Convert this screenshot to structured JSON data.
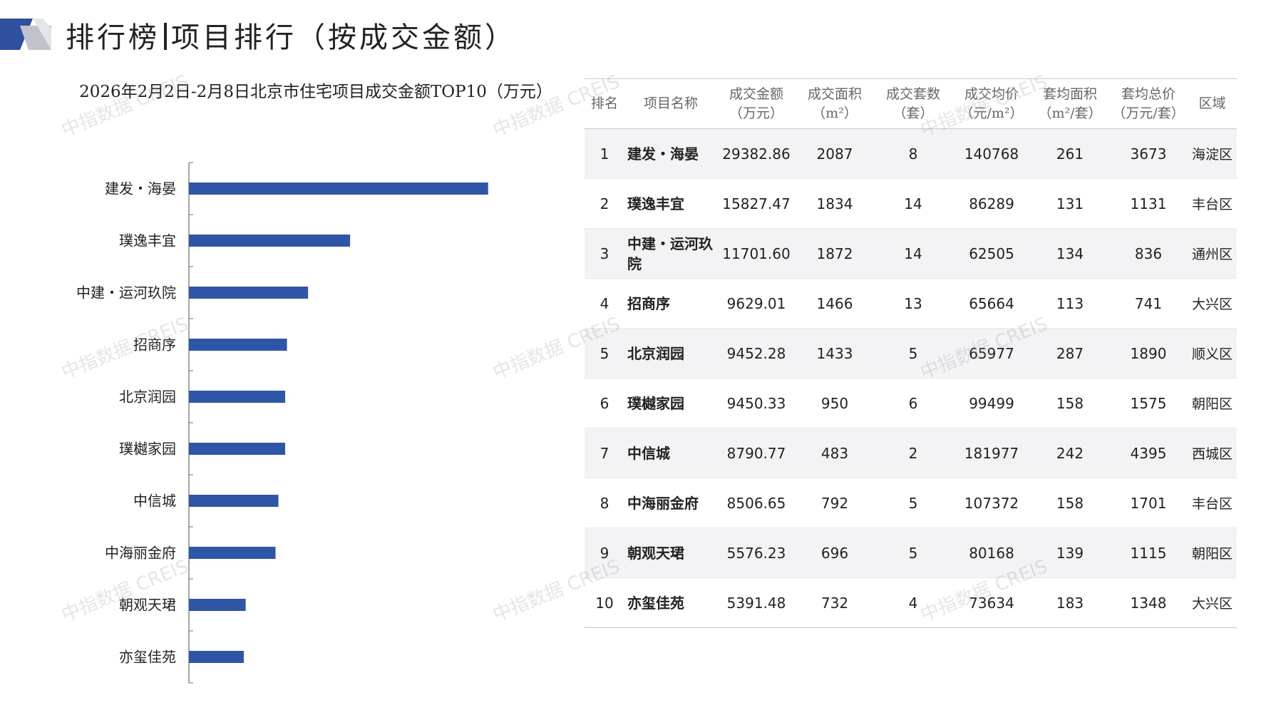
{
  "header": {
    "title_left": "排行榜",
    "title_right": "项目排行（按成交金额）"
  },
  "colors": {
    "bar": "#2f56a6",
    "logo_dark": "#2f4f9f",
    "logo_gray": "#bfc3cc"
  },
  "chart_data": {
    "type": "bar",
    "orientation": "horizontal",
    "title": "2026年2月2日-2月8日北京市住宅项目成交金额TOP10（万元）",
    "categories": [
      "建发・海晏",
      "璞逸丰宜",
      "中建・运河玖院",
      "招商序",
      "北京润园",
      "璞樾家园",
      "中信城",
      "中海丽金府",
      "朝观天珺",
      "亦玺佳苑"
    ],
    "values": [
      29382.86,
      15827.47,
      11701.6,
      9629.01,
      9452.28,
      9450.33,
      8790.77,
      8506.65,
      5576.23,
      5391.48
    ],
    "xlim": [
      0,
      35000
    ]
  },
  "table": {
    "headers": [
      [
        "排名"
      ],
      [
        "项目名称"
      ],
      [
        "成交金额",
        "（万元）"
      ],
      [
        "成交面积",
        "（m²）"
      ],
      [
        "成交套数",
        "（套）"
      ],
      [
        "成交均价",
        "（元/m²）"
      ],
      [
        "套均面积",
        "（m²/套）"
      ],
      [
        "套均总价",
        "（万元/套）"
      ],
      [
        "区域"
      ]
    ],
    "rows": [
      {
        "rank": "1",
        "name": "建发・海晏",
        "amount": "29382.86",
        "area": "2087",
        "units": "8",
        "price": "140768",
        "avg_area": "261",
        "avg_total": "3673",
        "region": "海淀区"
      },
      {
        "rank": "2",
        "name": "璞逸丰宜",
        "amount": "15827.47",
        "area": "1834",
        "units": "14",
        "price": "86289",
        "avg_area": "131",
        "avg_total": "1131",
        "region": "丰台区"
      },
      {
        "rank": "3",
        "name": "中建・运河玖院",
        "amount": "11701.60",
        "area": "1872",
        "units": "14",
        "price": "62505",
        "avg_area": "134",
        "avg_total": "836",
        "region": "通州区"
      },
      {
        "rank": "4",
        "name": "招商序",
        "amount": "9629.01",
        "area": "1466",
        "units": "13",
        "price": "65664",
        "avg_area": "113",
        "avg_total": "741",
        "region": "大兴区"
      },
      {
        "rank": "5",
        "name": "北京润园",
        "amount": "9452.28",
        "area": "1433",
        "units": "5",
        "price": "65977",
        "avg_area": "287",
        "avg_total": "1890",
        "region": "顺义区"
      },
      {
        "rank": "6",
        "name": "璞樾家园",
        "amount": "9450.33",
        "area": "950",
        "units": "6",
        "price": "99499",
        "avg_area": "158",
        "avg_total": "1575",
        "region": "朝阳区"
      },
      {
        "rank": "7",
        "name": "中信城",
        "amount": "8790.77",
        "area": "483",
        "units": "2",
        "price": "181977",
        "avg_area": "242",
        "avg_total": "4395",
        "region": "西城区"
      },
      {
        "rank": "8",
        "name": "中海丽金府",
        "amount": "8506.65",
        "area": "792",
        "units": "5",
        "price": "107372",
        "avg_area": "158",
        "avg_total": "1701",
        "region": "丰台区"
      },
      {
        "rank": "9",
        "name": "朝观天珺",
        "amount": "5576.23",
        "area": "696",
        "units": "5",
        "price": "80168",
        "avg_area": "139",
        "avg_total": "1115",
        "region": "朝阳区"
      },
      {
        "rank": "10",
        "name": "亦玺佳苑",
        "amount": "5391.48",
        "area": "732",
        "units": "4",
        "price": "73634",
        "avg_area": "183",
        "avg_total": "1348",
        "region": "大兴区"
      }
    ]
  },
  "watermark": "中指数据 CREIS"
}
